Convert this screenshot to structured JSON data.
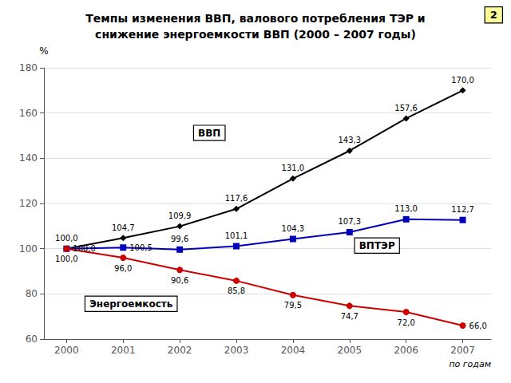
{
  "chart_data": {
    "type": "line",
    "title": "Темпы изменения ВВП, валового потребления ТЭР и\nснижение энергоемкости ВВП (2000 – 2007 годы)",
    "xlabel": "по годам",
    "ylabel": "%",
    "x": [
      2000,
      2001,
      2002,
      2003,
      2004,
      2005,
      2006,
      2007
    ],
    "xlim": [
      1999.6,
      2007.5
    ],
    "xticks": [
      2000,
      2001,
      2002,
      2003,
      2004,
      2005,
      2006,
      2007
    ],
    "ylim": [
      60,
      180
    ],
    "yticks": [
      60,
      80,
      100,
      120,
      140,
      160,
      180
    ],
    "grid": true,
    "data_labels": true,
    "annotations": [
      "2"
    ],
    "series": [
      {
        "name": "ВВП",
        "color": "#000000",
        "marker": "diamond",
        "values": [
          100.0,
          104.7,
          109.9,
          117.6,
          131.0,
          143.3,
          157.6,
          170.0
        ],
        "value_labels": [
          "100,0",
          "104,7",
          "109,9",
          "117,6",
          "131,0",
          "143,3",
          "157,6",
          "170,0"
        ]
      },
      {
        "name": "ВПТЭР",
        "color": "#0000bb",
        "marker": "square",
        "values": [
          100.0,
          100.5,
          99.6,
          101.1,
          104.3,
          107.3,
          113.0,
          112.7
        ],
        "value_labels": [
          "100,0",
          "100,5",
          "99,6",
          "101,1",
          "104,3",
          "107,3",
          "113,0",
          "112,7"
        ]
      },
      {
        "name": "Энергоемкость",
        "color": "#cc0000",
        "marker": "circle",
        "values": [
          100.0,
          96.0,
          90.6,
          85.8,
          79.5,
          74.7,
          72.0,
          66.0
        ],
        "value_labels": [
          "100,0",
          "96,0",
          "90,6",
          "85,8",
          "79,5",
          "74,7",
          "72,0",
          "66,0"
        ]
      }
    ]
  }
}
